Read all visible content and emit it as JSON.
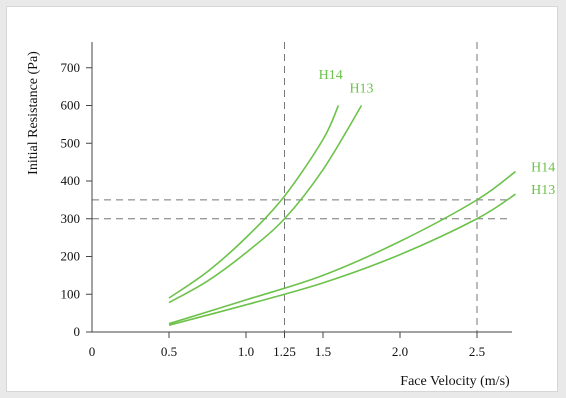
{
  "chart_data": {
    "type": "line",
    "xlabel": "Face Velocity (m/s)",
    "ylabel": "Initial Resistance (Pa)",
    "xlim": [
      0,
      2.75
    ],
    "ylim": [
      0,
      750
    ],
    "x_ticks": [
      {
        "value": 0,
        "label": "0"
      },
      {
        "value": 0.5,
        "label": "0.5"
      },
      {
        "value": 1.0,
        "label": "1.0"
      },
      {
        "value": 1.25,
        "label": "1.25"
      },
      {
        "value": 1.5,
        "label": "1.5"
      },
      {
        "value": 2.0,
        "label": "2.0"
      },
      {
        "value": 2.5,
        "label": "2.5"
      }
    ],
    "y_ticks": [
      {
        "value": 0,
        "label": "0"
      },
      {
        "value": 100,
        "label": "100"
      },
      {
        "value": 200,
        "label": "200"
      },
      {
        "value": 300,
        "label": "300"
      },
      {
        "value": 400,
        "label": "400"
      },
      {
        "value": 500,
        "label": "500"
      },
      {
        "value": 600,
        "label": "600"
      },
      {
        "value": 700,
        "label": "700"
      }
    ],
    "reference_lines": {
      "vertical": [
        1.25,
        2.5
      ],
      "horizontal": [
        300,
        350
      ]
    },
    "series": [
      {
        "name": "H14",
        "color": "#6cc24a",
        "x": [
          0.5,
          0.75,
          1.0,
          1.25,
          1.5,
          1.6
        ],
        "y": [
          90,
          160,
          250,
          360,
          510,
          600
        ],
        "label_x": 1.55,
        "label_y": 670
      },
      {
        "name": "H13",
        "color": "#6cc24a",
        "x": [
          0.5,
          0.75,
          1.0,
          1.25,
          1.5,
          1.75
        ],
        "y": [
          78,
          135,
          210,
          300,
          430,
          600
        ],
        "label_x": 1.75,
        "label_y": 635
      },
      {
        "name": "H14",
        "color": "#6cc24a",
        "x": [
          0.5,
          1.0,
          1.5,
          2.0,
          2.5,
          2.75
        ],
        "y": [
          22,
          85,
          150,
          240,
          350,
          425
        ],
        "label_x": 2.93,
        "label_y": 425
      },
      {
        "name": "H13",
        "color": "#6cc24a",
        "x": [
          0.5,
          1.0,
          1.5,
          2.0,
          2.5,
          2.75
        ],
        "y": [
          18,
          72,
          130,
          205,
          300,
          365
        ],
        "label_x": 2.93,
        "label_y": 365
      }
    ]
  }
}
